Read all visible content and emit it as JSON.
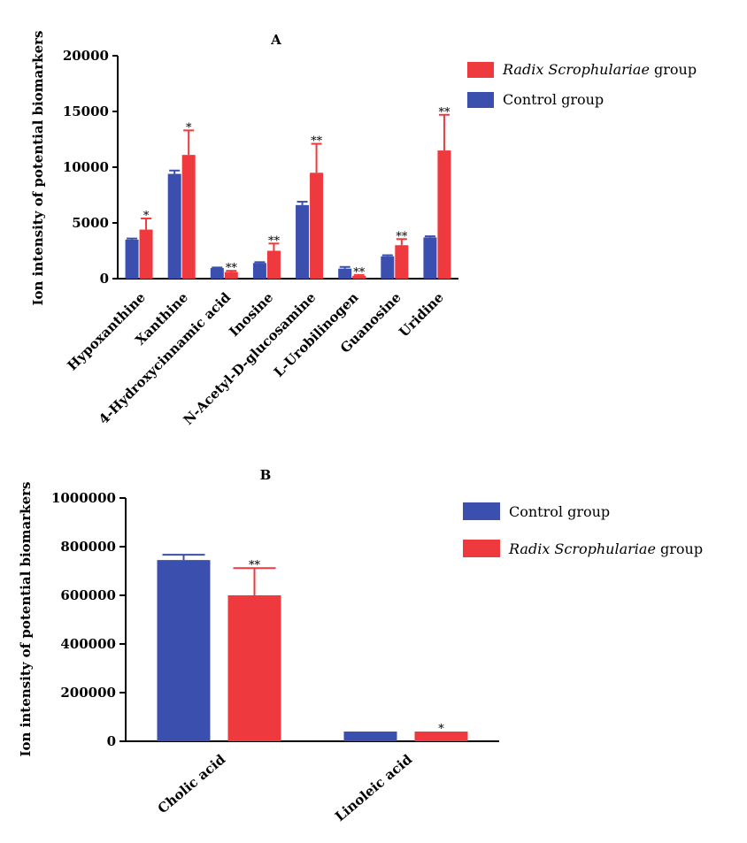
{
  "chart_data": [
    {
      "type": "bar",
      "title": "A",
      "ylabel": "Ion intensity of potential biomarkers",
      "xlabel": "",
      "ylim": [
        0,
        20000
      ],
      "yticks": [
        "0",
        "5000",
        "10000",
        "15000",
        "20000"
      ],
      "ytick_values": [
        0,
        5000,
        10000,
        15000,
        20000
      ],
      "categories": [
        "Hypoxanthine",
        "Xanthine",
        "4-Hydroxycinnamic acid",
        "Inosine",
        "N-Acetyl-D-glucosamine",
        "L-Urobilinogen",
        "Guanosine",
        "Uridine"
      ],
      "series": [
        {
          "name": "Control group",
          "color": "#3a4fae",
          "values": [
            3500,
            9400,
            950,
            1400,
            6600,
            900,
            2000,
            3700
          ],
          "errors": [
            100,
            300,
            50,
            80,
            300,
            150,
            100,
            100
          ]
        },
        {
          "name": "Radix Scrophulariae group",
          "color": "#ee3a3e",
          "values": [
            4400,
            11100,
            600,
            2500,
            9500,
            250,
            3000,
            11500
          ],
          "errors": [
            1000,
            2200,
            100,
            650,
            2600,
            80,
            550,
            3200
          ],
          "significance": [
            "*",
            "*",
            "**",
            "**",
            "**",
            "**",
            "**",
            "**"
          ]
        }
      ],
      "legend": {
        "placement": "top-right",
        "entries": [
          {
            "italic": "Radix Scrophulariae",
            "rest": " group",
            "color": "#ee3a3e"
          },
          {
            "italic": "",
            "rest": "Control group",
            "color": "#3a4fae"
          }
        ]
      }
    },
    {
      "type": "bar",
      "title": "B",
      "ylabel": "Ion intensity of potential biomarkers",
      "xlabel": "",
      "ylim": [
        0,
        1000000
      ],
      "yticks": [
        "0",
        "200000",
        "400000",
        "600000",
        "800000",
        "1000000"
      ],
      "ytick_values": [
        0,
        200000,
        400000,
        600000,
        800000,
        1000000
      ],
      "categories": [
        "Cholic acid",
        "Linoleic acid"
      ],
      "series": [
        {
          "name": "Control group",
          "color": "#3a4fae",
          "values": [
            745000,
            40000
          ],
          "errors": [
            22000,
            0
          ]
        },
        {
          "name": "Radix Scrophulariae group",
          "color": "#ee3a3e",
          "values": [
            600000,
            40000
          ],
          "errors": [
            112000,
            0
          ],
          "significance": [
            "**",
            "*"
          ]
        }
      ],
      "legend": {
        "placement": "top-right",
        "entries": [
          {
            "italic": "",
            "rest": "Control group",
            "color": "#3a4fae"
          },
          {
            "italic": "Radix Scrophulariae",
            "rest": " group",
            "color": "#ee3a3e"
          }
        ]
      }
    }
  ]
}
